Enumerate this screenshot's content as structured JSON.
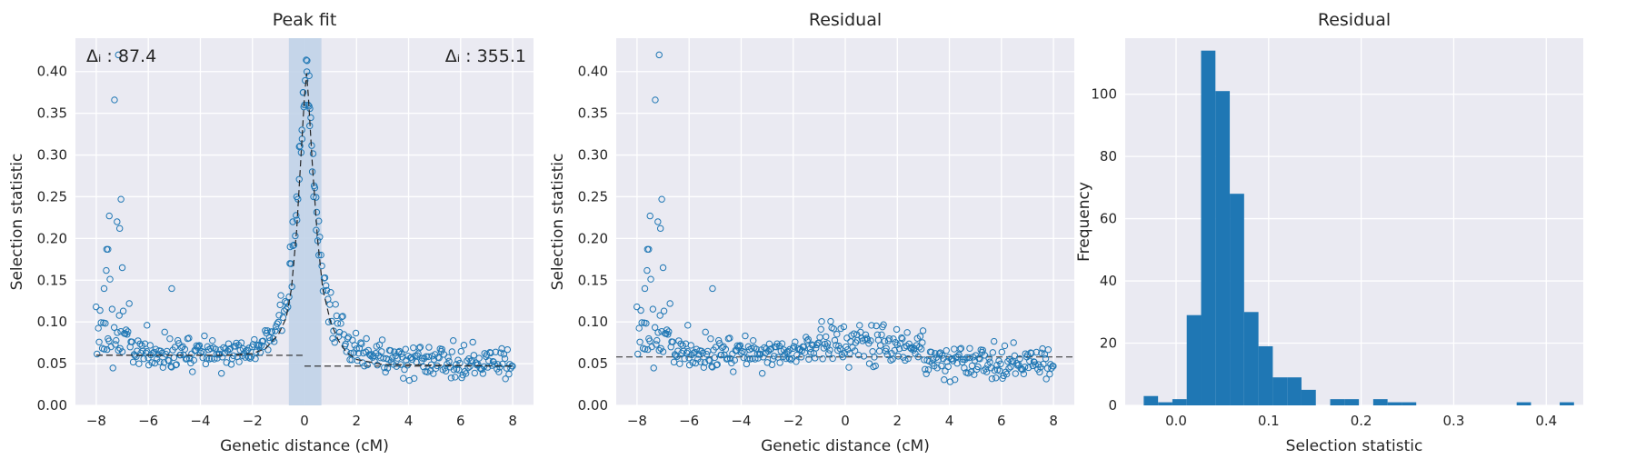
{
  "colors": {
    "accent": "#1f77b4",
    "axes_bg": "#eaeaf2",
    "grid": "#ffffff",
    "peak_band": "#c1d3e8"
  },
  "chart_data": [
    {
      "type": "scatter",
      "title": "Peak fit",
      "xlabel": "Genetic distance (cM)",
      "ylabel": "Selection statistic",
      "xlim": [
        -8.8,
        8.8
      ],
      "ylim": [
        0.0,
        0.44
      ],
      "xticks": [
        -8,
        -6,
        -4,
        -2,
        0,
        2,
        4,
        6,
        8
      ],
      "xtick_labels": [
        "−8",
        "−6",
        "−4",
        "−2",
        "0",
        "2",
        "4",
        "6",
        "8"
      ],
      "yticks": [
        0.0,
        0.05,
        0.1,
        0.15,
        0.2,
        0.25,
        0.3,
        0.35,
        0.4
      ],
      "ytick_labels": [
        "0.00",
        "0.05",
        "0.10",
        "0.15",
        "0.20",
        "0.25",
        "0.30",
        "0.35",
        "0.40"
      ],
      "grid": true,
      "annotations": [
        {
          "text": "Δᵢ : 87.4",
          "position": "top-left"
        },
        {
          "text": "Δᵢ : 355.1",
          "position": "top-right"
        }
      ],
      "shaded_region": {
        "x": [
          -0.6,
          0.65
        ]
      },
      "baseline": 0.06,
      "right_baseline": 0.047,
      "fit_curve": {
        "x": [
          -8.0,
          -3.0,
          -2.0,
          -1.5,
          -1.0,
          -0.7,
          -0.5,
          -0.3,
          -0.15,
          0.0,
          0.08,
          0.15,
          0.3,
          0.5,
          0.7,
          1.0,
          1.3,
          1.6,
          2.0,
          3.0,
          8.0
        ],
        "y": [
          0.06,
          0.06,
          0.062,
          0.068,
          0.085,
          0.105,
          0.14,
          0.21,
          0.29,
          0.37,
          0.398,
          0.37,
          0.29,
          0.2,
          0.14,
          0.1,
          0.078,
          0.064,
          0.055,
          0.049,
          0.047
        ]
      }
    },
    {
      "type": "scatter",
      "title": "Residual",
      "xlabel": "Genetic distance (cM)",
      "ylabel": "Selection statistic",
      "xlim": [
        -8.8,
        8.8
      ],
      "ylim": [
        0.0,
        0.44
      ],
      "xticks": [
        -8,
        -6,
        -4,
        -2,
        0,
        2,
        4,
        6,
        8
      ],
      "xtick_labels": [
        "−8",
        "−6",
        "−4",
        "−2",
        "0",
        "2",
        "4",
        "6",
        "8"
      ],
      "yticks": [
        0.0,
        0.05,
        0.1,
        0.15,
        0.2,
        0.25,
        0.3,
        0.35,
        0.4
      ],
      "ytick_labels": [
        "0.00",
        "0.05",
        "0.10",
        "0.15",
        "0.20",
        "0.25",
        "0.30",
        "0.35",
        "0.40"
      ],
      "grid": true,
      "baseline": 0.058
    },
    {
      "type": "bar",
      "title": "Residual",
      "xlabel": "Selection statistic",
      "ylabel": "Frequency",
      "xlim": [
        -0.055,
        0.44
      ],
      "ylim": [
        0,
        118
      ],
      "xticks": [
        0.0,
        0.1,
        0.2,
        0.3,
        0.4
      ],
      "xtick_labels": [
        "0.0",
        "0.1",
        "0.2",
        "0.3",
        "0.4"
      ],
      "yticks": [
        0,
        20,
        40,
        60,
        80,
        100
      ],
      "ytick_labels": [
        "0",
        "20",
        "40",
        "60",
        "80",
        "100"
      ],
      "grid": true,
      "bin_edges": [
        -0.035,
        -0.0195,
        -0.004,
        0.0115,
        0.027,
        0.0425,
        0.058,
        0.0735,
        0.089,
        0.1045,
        0.12,
        0.1355,
        0.151,
        0.1665,
        0.182,
        0.1975,
        0.213,
        0.2285,
        0.244,
        0.2595,
        0.275,
        0.2905,
        0.306,
        0.3215,
        0.337,
        0.3525,
        0.368,
        0.3835,
        0.399,
        0.4145,
        0.43
      ],
      "counts": [
        3,
        1,
        2,
        29,
        114,
        101,
        68,
        30,
        19,
        9,
        9,
        5,
        0,
        2,
        2,
        0,
        2,
        1,
        1,
        0,
        0,
        0,
        0,
        0,
        0,
        0,
        1,
        0,
        0,
        1
      ]
    }
  ]
}
